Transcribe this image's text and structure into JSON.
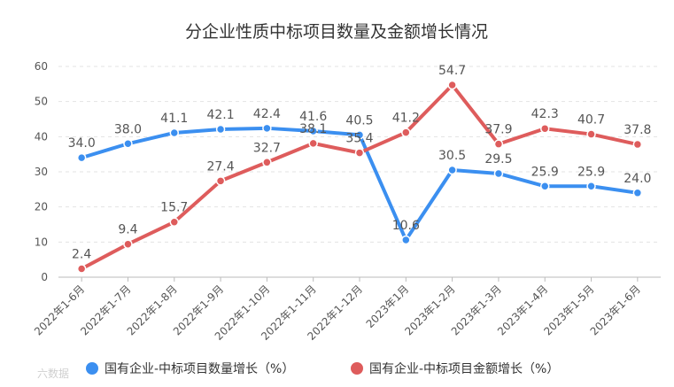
{
  "chart_data": {
    "type": "line",
    "title": "分企业性质中标项目数量及金额增长情况",
    "categories": [
      "2022年1-6月",
      "2022年1-7月",
      "2022年1-8月",
      "2022年1-9月",
      "2022年1-10月",
      "2022年1-11月",
      "2022年1-12月",
      "2023年1月",
      "2023年1-2月",
      "2023年1-3月",
      "2023年1-4月",
      "2023年1-5月",
      "2023年1-6月"
    ],
    "series": [
      {
        "name": "国有企业-中标项目数量增长（%）",
        "color": "#3b8ff0",
        "values": [
          34.0,
          38.0,
          41.1,
          42.1,
          42.4,
          41.6,
          40.5,
          10.6,
          30.5,
          29.5,
          25.9,
          25.9,
          24.0
        ]
      },
      {
        "name": "国有企业-中标项目金额增长（%）",
        "color": "#de5c5c",
        "values": [
          2.4,
          9.4,
          15.7,
          27.4,
          32.7,
          38.1,
          35.4,
          41.2,
          54.7,
          37.9,
          42.3,
          40.7,
          37.8
        ]
      }
    ],
    "ylim": [
      0,
      60
    ],
    "yticks": [
      0,
      10,
      20,
      30,
      40,
      50,
      60
    ],
    "grid": true,
    "legend_position": "bottom"
  },
  "watermark": "六数据"
}
